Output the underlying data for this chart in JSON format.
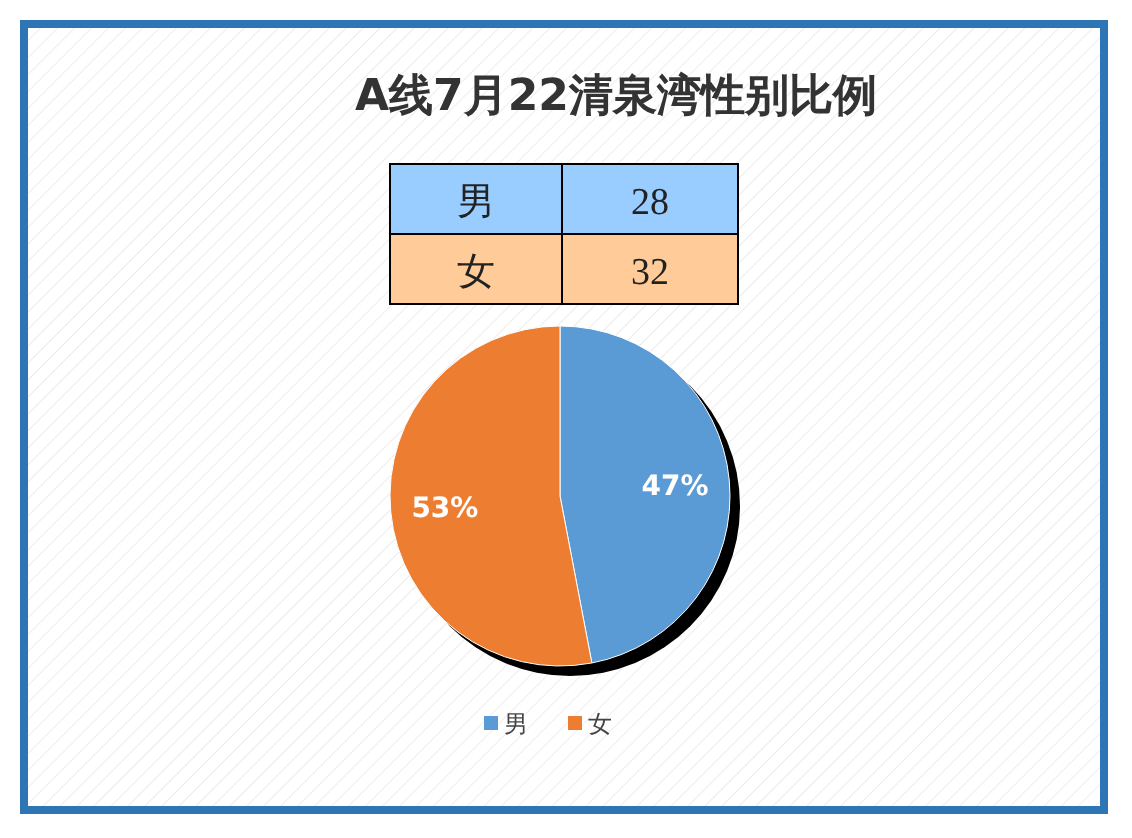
{
  "chart_data": {
    "type": "pie",
    "title": "A线7月22清泉湾性别比例",
    "categories": [
      "男",
      "女"
    ],
    "values": [
      47,
      53
    ],
    "annotations": [
      "28",
      "32"
    ],
    "colors": [
      "#5b9bd5",
      "#ed7d31"
    ],
    "value_labels": [
      "47%",
      "53%"
    ],
    "legend": "bottom"
  }
}
